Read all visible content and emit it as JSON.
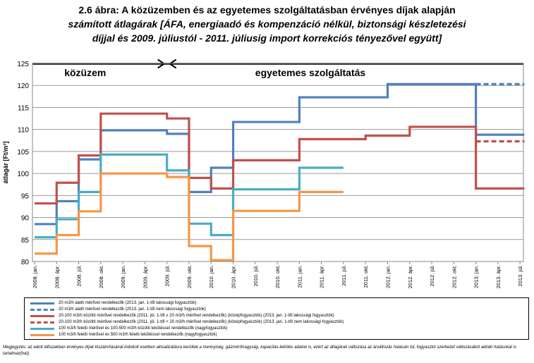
{
  "title_lines": {
    "line1": "2.6 ábra: A közüzemben és az egyetemes szolgáltatásban érvényes díjak alapján",
    "line2": "számított átlagárak [ÁFA, energiaadó és kompenzáció nélkül, biztonsági készletezési",
    "line3": "díjjal és 2009. júliustól  - 2011. júliusig import korrekciós tényezővel együtt]"
  },
  "chart_data": {
    "type": "line",
    "step": true,
    "ylabel": "átlagár [Ft/m³]",
    "ylim": [
      80,
      125
    ],
    "yticks": [
      80,
      85,
      90,
      95,
      100,
      105,
      110,
      115,
      120,
      125
    ],
    "categories": [
      "2008. jan.",
      "2008. ápr.",
      "2008. júl.",
      "2008. okt.",
      "2009. jan.",
      "2009. ápr.",
      "2009. júl.",
      "2009. okt.",
      "2010. jan.",
      "2010. ápr.",
      "2010. júl.",
      "2010. okt.",
      "2011. jan.",
      "2011. ápr.",
      "2011. júl.",
      "2011. okt.",
      "2012. jan.",
      "2012. ápr.",
      "2012. júl.",
      "2012. okt.",
      "2013. jan.",
      "2013. ápr.",
      "2013. júl."
    ],
    "grid": true,
    "annotations": {
      "left_label": "közüzem",
      "right_label": "egyetemes szolgáltatás"
    },
    "series": [
      {
        "name": "20 m3/h alatti mérővel rendelkezők (2013. jan. 1-től lakossági fogyasztók)",
        "color": "#4f81bd",
        "dash": false,
        "points": [
          [
            0,
            88.5
          ],
          [
            1,
            93.7
          ],
          [
            2,
            103.2
          ],
          [
            3,
            109.8
          ],
          [
            6,
            109.0
          ],
          [
            7,
            95.8
          ],
          [
            8,
            101.3
          ],
          [
            9,
            111.7
          ],
          [
            12,
            117.3
          ],
          [
            16,
            120.3
          ],
          [
            20,
            108.8
          ],
          [
            22.2,
            108.8
          ]
        ]
      },
      {
        "name": "20 m3/h alatti mérővel rendelkezők (2013. jan. 1-től nem lakossági fogyasztók)",
        "color": "#4f81bd",
        "dash": true,
        "points": [
          [
            20,
            120.3
          ],
          [
            22.2,
            120.3
          ]
        ]
      },
      {
        "name": "20-100 m3/h közötti mérővel rendelkezők (2011. júl. 1-től ≥ 20 m3/h mérővel rendelkezők) (középfogyasztók) (2013. jan. 1-től lakossági fogyasztók)",
        "color": "#c0504d",
        "dash": false,
        "points": [
          [
            0,
            93.2
          ],
          [
            1,
            97.9
          ],
          [
            2,
            104.1
          ],
          [
            3,
            113.6
          ],
          [
            6,
            112.5
          ],
          [
            7,
            99.0
          ],
          [
            8,
            96.6
          ],
          [
            9,
            103.0
          ],
          [
            12,
            107.8
          ],
          [
            15,
            108.6
          ],
          [
            17,
            110.6
          ],
          [
            20,
            96.6
          ],
          [
            22.2,
            96.6
          ]
        ]
      },
      {
        "name": "20-100 m3/h közötti mérővel rendelkezők (2011. júl. 1-től < 20 m3/h mérővel rendelkezők) (középfogyasztók) (2013. jan. 1-től nem lakossági fogyasztók)",
        "color": "#c0504d",
        "dash": true,
        "points": [
          [
            20,
            107.3
          ],
          [
            22.2,
            107.3
          ]
        ]
      },
      {
        "name": "100 m3/h feletti mérővel és 100-500 m3/h közötti lekötéssel rendelkezők (nagyfogyasztók)",
        "color": "#4bacc6",
        "dash": false,
        "points": [
          [
            0,
            85.5
          ],
          [
            1,
            89.6
          ],
          [
            2,
            95.8
          ],
          [
            3,
            104.3
          ],
          [
            6,
            100.7
          ],
          [
            7,
            88.6
          ],
          [
            8,
            86.0
          ],
          [
            9,
            96.4
          ],
          [
            12,
            101.3
          ],
          [
            14,
            101.3
          ]
        ]
      },
      {
        "name": "100 m3/h feletti mérővel és 500 m3/h feletti lekötéssel rendelkezők (nagyfogyasztók)",
        "color": "#f79646",
        "dash": false,
        "points": [
          [
            0,
            81.8
          ],
          [
            1,
            86.0
          ],
          [
            2,
            91.4
          ],
          [
            3,
            100.0
          ],
          [
            6,
            99.2
          ],
          [
            7,
            83.5
          ],
          [
            8,
            80.3
          ],
          [
            9,
            91.5
          ],
          [
            12,
            95.8
          ],
          [
            14,
            95.8
          ]
        ]
      }
    ]
  },
  "note": "Megjegyzés: az adott időszakban érvényes díjak kiszámításánál indokolt esetben aktualizálásra kerültek a mennyiség, gázmérőnagyság, kapacitás-lekötés adatok is, ezért az átlagárak változása az árváltozás hatásán túl, fogyasztói szerkezet változásából adódó hatásokat is tartalmaz(hat)."
}
